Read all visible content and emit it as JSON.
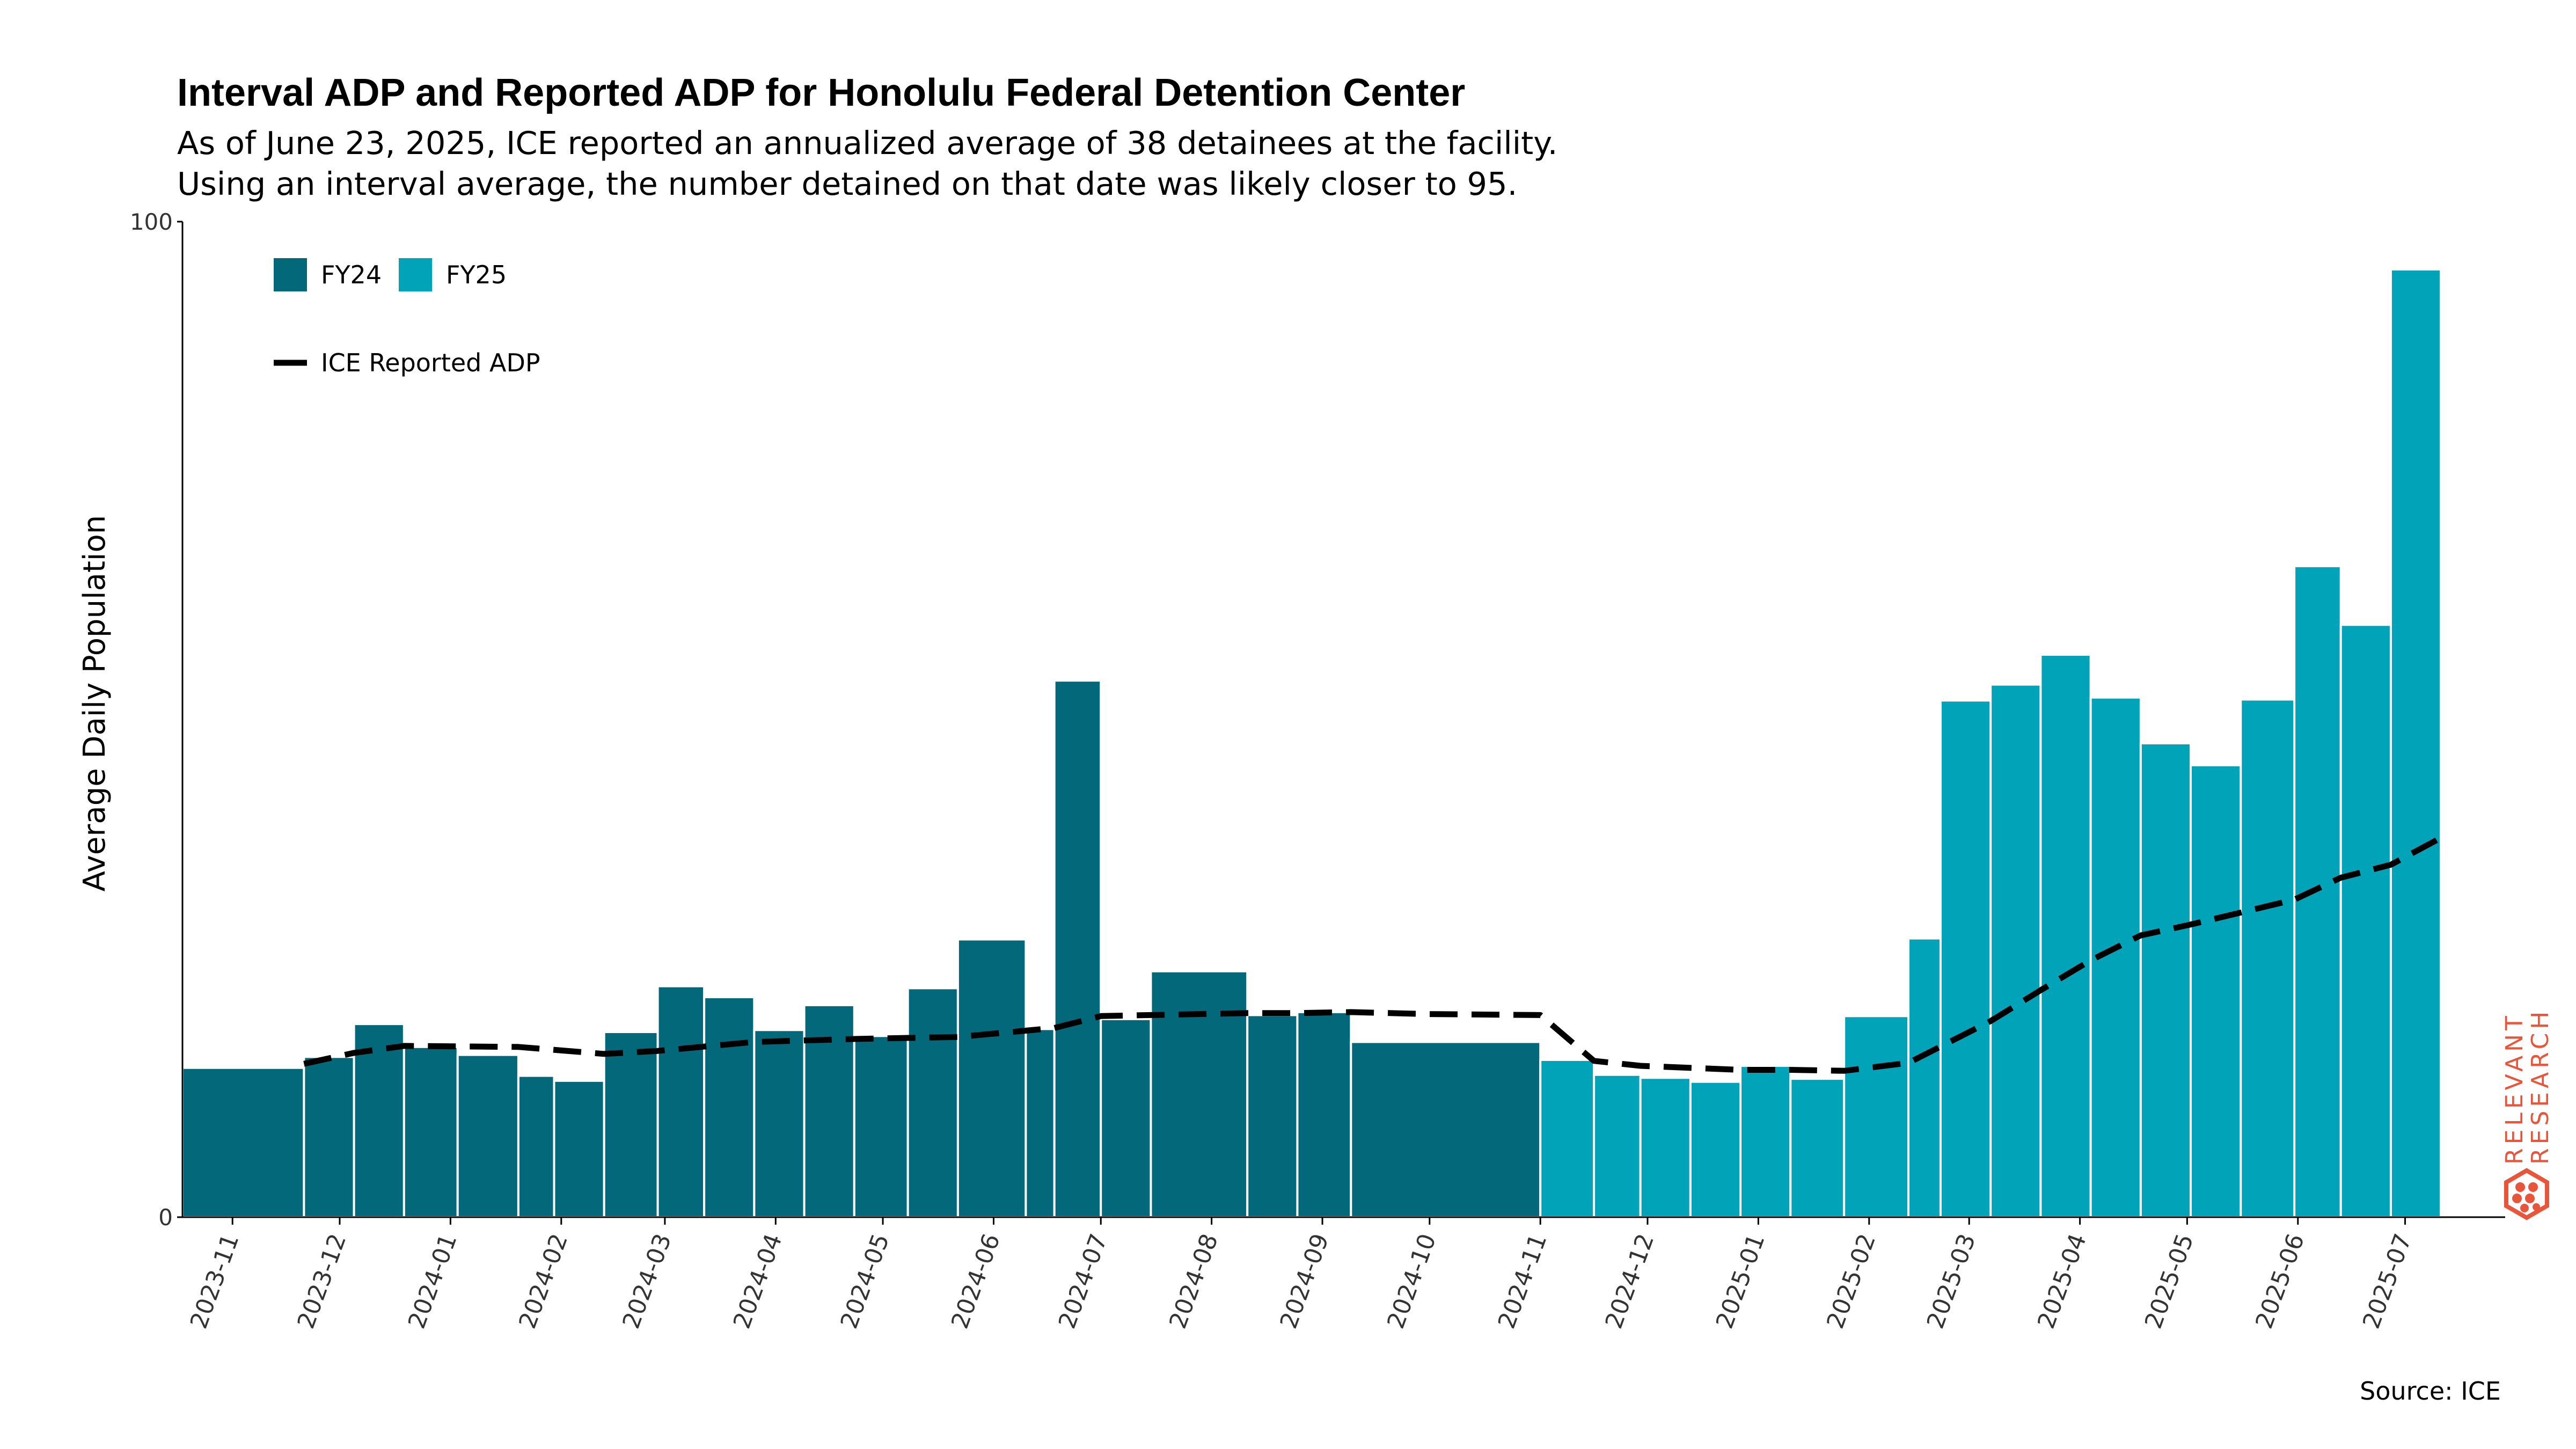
{
  "title": "Interval ADP and Reported ADP for Honolulu Federal Detention Center",
  "subtitle_lines": [
    "As of June 23, 2025, ICE reported an annualized average of 38 detainees at the facility.",
    "Using an interval average, the number detained on that date was likely closer to 95."
  ],
  "source": "Source: ICE",
  "watermark": {
    "line1": "RELEVANT",
    "line2": "RESEARCH",
    "color": "#e8553a"
  },
  "colors": {
    "FY24": "#02687a",
    "FY25": "#01a3b8",
    "line": "#000000",
    "watermark": "#e8553a"
  },
  "chart_data": {
    "type": "bar",
    "ylabel": "Average Daily Population",
    "ylim": [
      0,
      100
    ],
    "yticks": [
      "0",
      "100"
    ],
    "xlim": [
      "2023-10-18",
      "2025-07-29"
    ],
    "xticks": [
      "2023-11-01",
      "2023-12-01",
      "2024-01-01",
      "2024-02-01",
      "2024-03-01",
      "2024-04-01",
      "2024-05-01",
      "2024-06-01",
      "2024-07-01",
      "2024-08-01",
      "2024-09-01",
      "2024-10-01",
      "2024-11-01",
      "2024-12-01",
      "2025-01-01",
      "2025-02-01",
      "2025-03-01",
      "2025-04-01",
      "2025-05-01",
      "2025-06-01",
      "2025-07-01"
    ],
    "xtick_labels": [
      "2023-11",
      "2023-12",
      "2024-01",
      "2024-02",
      "2024-03",
      "2024-04",
      "2024-05",
      "2024-06",
      "2024-07",
      "2024-08",
      "2024-09",
      "2024-10",
      "2024-11",
      "2024-12",
      "2025-01",
      "2025-02",
      "2025-03",
      "2025-04",
      "2025-05",
      "2025-06",
      "2025-07"
    ],
    "legend": {
      "position": "top-left",
      "entries": [
        "FY24",
        "FY25",
        "ICE Reported ADP"
      ]
    },
    "series": [
      {
        "name": "FY24",
        "intervals": [
          {
            "start": "2023-10-18",
            "end": "2023-11-21",
            "value": 15
          },
          {
            "start": "2023-11-21",
            "end": "2023-12-05",
            "value": 16.1
          },
          {
            "start": "2023-12-05",
            "end": "2023-12-19",
            "value": 19.4
          },
          {
            "start": "2023-12-19",
            "end": "2024-01-03",
            "value": 17.1
          },
          {
            "start": "2024-01-03",
            "end": "2024-01-20",
            "value": 16.3
          },
          {
            "start": "2024-01-20",
            "end": "2024-01-30",
            "value": 14.2
          },
          {
            "start": "2024-01-30",
            "end": "2024-02-13",
            "value": 13.7
          },
          {
            "start": "2024-02-13",
            "end": "2024-02-28",
            "value": 18.6
          },
          {
            "start": "2024-02-28",
            "end": "2024-03-12",
            "value": 23.2
          },
          {
            "start": "2024-03-12",
            "end": "2024-03-26",
            "value": 22.1
          },
          {
            "start": "2024-03-26",
            "end": "2024-04-09",
            "value": 18.8
          },
          {
            "start": "2024-04-09",
            "end": "2024-04-23",
            "value": 21.3
          },
          {
            "start": "2024-04-23",
            "end": "2024-05-08",
            "value": 18.2
          },
          {
            "start": "2024-05-08",
            "end": "2024-05-22",
            "value": 23
          },
          {
            "start": "2024-05-22",
            "end": "2024-06-10",
            "value": 27.9
          },
          {
            "start": "2024-06-10",
            "end": "2024-06-18",
            "value": 18.9
          },
          {
            "start": "2024-06-18",
            "end": "2024-07-01",
            "value": 53.9
          },
          {
            "start": "2024-07-01",
            "end": "2024-07-15",
            "value": 19.9
          },
          {
            "start": "2024-07-15",
            "end": "2024-08-11",
            "value": 24.7
          },
          {
            "start": "2024-08-11",
            "end": "2024-08-25",
            "value": 20.3
          },
          {
            "start": "2024-08-25",
            "end": "2024-09-09",
            "value": 20.6
          },
          {
            "start": "2024-09-09",
            "end": "2024-11-01",
            "value": 17.6
          }
        ]
      },
      {
        "name": "FY25",
        "intervals": [
          {
            "start": "2024-11-01",
            "end": "2024-11-16",
            "value": 15.8
          },
          {
            "start": "2024-11-16",
            "end": "2024-11-29",
            "value": 14.3
          },
          {
            "start": "2024-11-29",
            "end": "2024-12-13",
            "value": 14
          },
          {
            "start": "2024-12-13",
            "end": "2024-12-27",
            "value": 13.6
          },
          {
            "start": "2024-12-27",
            "end": "2025-01-10",
            "value": 15.2
          },
          {
            "start": "2025-01-10",
            "end": "2025-01-25",
            "value": 13.9
          },
          {
            "start": "2025-01-25",
            "end": "2025-02-12",
            "value": 20.2
          },
          {
            "start": "2025-02-12",
            "end": "2025-02-21",
            "value": 28
          },
          {
            "start": "2025-02-21",
            "end": "2025-03-07",
            "value": 51.9
          },
          {
            "start": "2025-03-07",
            "end": "2025-03-21",
            "value": 53.5
          },
          {
            "start": "2025-03-21",
            "end": "2025-04-04",
            "value": 56.5
          },
          {
            "start": "2025-04-04",
            "end": "2025-04-18",
            "value": 52.2
          },
          {
            "start": "2025-04-18",
            "end": "2025-05-02",
            "value": 47.6
          },
          {
            "start": "2025-05-02",
            "end": "2025-05-16",
            "value": 45.4
          },
          {
            "start": "2025-05-16",
            "end": "2025-05-31",
            "value": 52
          },
          {
            "start": "2025-05-31",
            "end": "2025-06-13",
            "value": 65.4
          },
          {
            "start": "2025-06-13",
            "end": "2025-06-27",
            "value": 59.5
          },
          {
            "start": "2025-06-27",
            "end": "2025-07-11",
            "value": 95.2
          }
        ]
      },
      {
        "name": "ICE Reported ADP",
        "points": [
          {
            "x": "2023-11-21",
            "y": 15.4
          },
          {
            "x": "2023-12-05",
            "y": 16.5
          },
          {
            "x": "2023-12-19",
            "y": 17.2
          },
          {
            "x": "2024-01-20",
            "y": 17.1
          },
          {
            "x": "2024-02-13",
            "y": 16.4
          },
          {
            "x": "2024-02-28",
            "y": 16.7
          },
          {
            "x": "2024-03-26",
            "y": 17.6
          },
          {
            "x": "2024-04-23",
            "y": 17.9
          },
          {
            "x": "2024-05-22",
            "y": 18.1
          },
          {
            "x": "2024-06-18",
            "y": 19
          },
          {
            "x": "2024-07-01",
            "y": 20.2
          },
          {
            "x": "2024-07-15",
            "y": 20.3
          },
          {
            "x": "2024-08-11",
            "y": 20.5
          },
          {
            "x": "2024-08-25",
            "y": 20.5
          },
          {
            "x": "2024-09-09",
            "y": 20.6
          },
          {
            "x": "2024-10-01",
            "y": 20.4
          },
          {
            "x": "2024-11-01",
            "y": 20.3
          },
          {
            "x": "2024-11-16",
            "y": 15.7
          },
          {
            "x": "2024-11-29",
            "y": 15.2
          },
          {
            "x": "2024-12-27",
            "y": 14.8
          },
          {
            "x": "2025-01-10",
            "y": 14.8
          },
          {
            "x": "2025-01-25",
            "y": 14.7
          },
          {
            "x": "2025-02-12",
            "y": 15.5
          },
          {
            "x": "2025-03-07",
            "y": 19.7
          },
          {
            "x": "2025-03-21",
            "y": 22.8
          },
          {
            "x": "2025-04-04",
            "y": 25.8
          },
          {
            "x": "2025-04-18",
            "y": 28.3
          },
          {
            "x": "2025-05-02",
            "y": 29.4
          },
          {
            "x": "2025-05-16",
            "y": 30.6
          },
          {
            "x": "2025-05-31",
            "y": 31.9
          },
          {
            "x": "2025-06-13",
            "y": 34.1
          },
          {
            "x": "2025-06-27",
            "y": 35.4
          },
          {
            "x": "2025-07-11",
            "y": 38.1
          }
        ]
      }
    ]
  }
}
